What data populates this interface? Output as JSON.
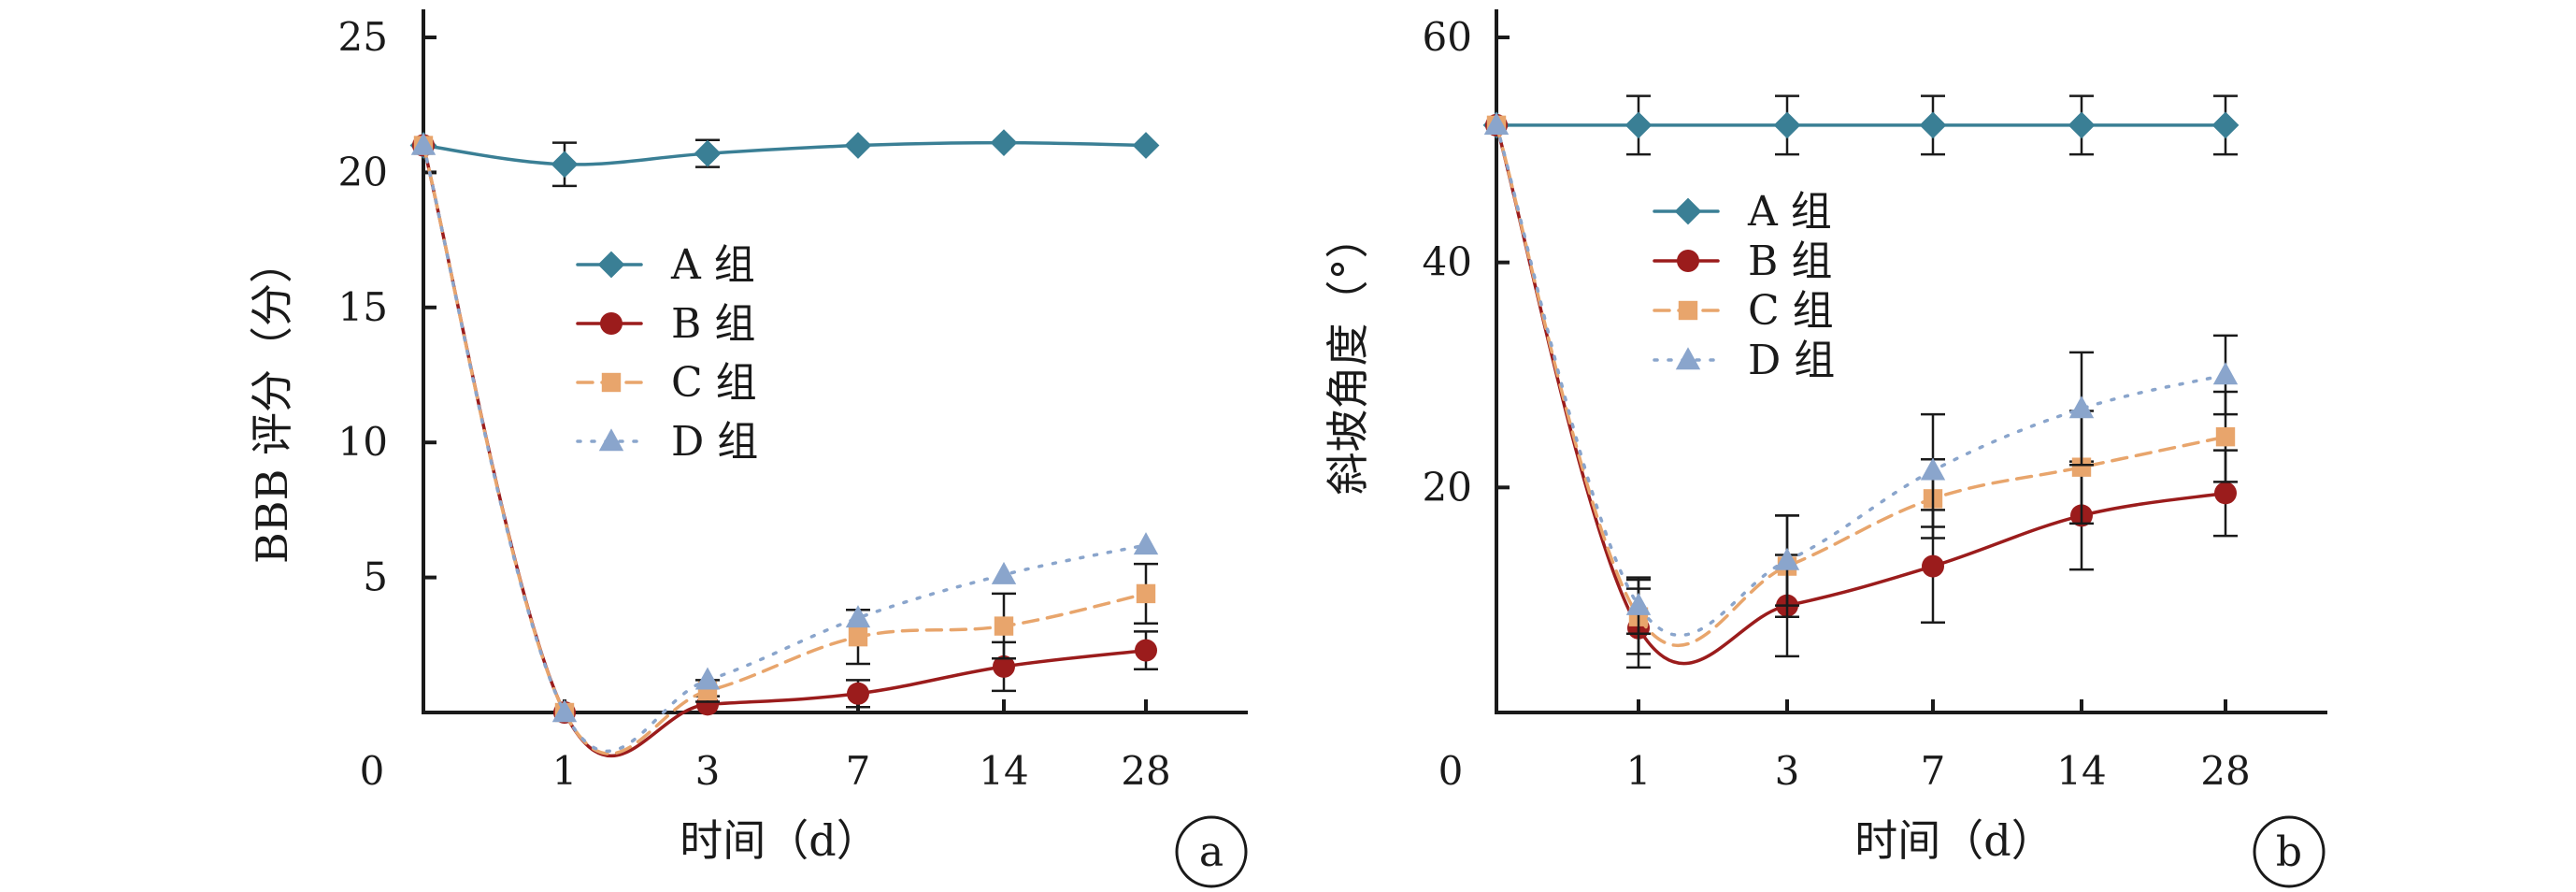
{
  "chart_data": [
    {
      "type": "line",
      "panel_label": "a",
      "categories": [
        "0",
        "1",
        "3",
        "7",
        "14",
        "28"
      ],
      "xlabel": "时间（d）",
      "ylabel": "BBB 评分（分）",
      "ylim": [
        0,
        25
      ],
      "y_ticks": [
        "5",
        "10",
        "15",
        "20",
        "25"
      ],
      "zero_label": "0",
      "legend_position": "center-left",
      "series": [
        {
          "name": "A 组",
          "color": "#3a7f95",
          "marker": "diamond",
          "line": "solid",
          "values": [
            21.0,
            20.3,
            20.7,
            21.0,
            21.1,
            21.0
          ],
          "errors": [
            0,
            0.8,
            0.5,
            0,
            0,
            0
          ]
        },
        {
          "name": "B 组",
          "color": "#9b1c1c",
          "marker": "circle",
          "line": "solid",
          "values": [
            21.0,
            0.0,
            0.3,
            0.7,
            1.7,
            2.3
          ],
          "errors": [
            0,
            0,
            0.3,
            0.5,
            0.9,
            0.7
          ]
        },
        {
          "name": "C 组",
          "color": "#e8a56c",
          "marker": "square",
          "line": "dashed",
          "values": [
            21.0,
            0.0,
            0.8,
            2.8,
            3.2,
            4.4
          ],
          "errors": [
            0,
            0,
            0.4,
            1.0,
            1.2,
            1.1
          ]
        },
        {
          "name": "D 组",
          "color": "#8aa5cc",
          "marker": "triangle",
          "line": "dotted",
          "values": [
            21.0,
            0.0,
            1.2,
            3.5,
            5.1,
            6.2
          ],
          "errors": [
            0,
            0,
            0,
            0,
            0,
            0
          ]
        }
      ]
    },
    {
      "type": "line",
      "panel_label": "b",
      "categories": [
        "0",
        "1",
        "3",
        "7",
        "14",
        "28"
      ],
      "xlabel": "时间（d）",
      "ylabel": "斜坡角度（°）",
      "ylim": [
        0,
        60
      ],
      "y_ticks": [
        "20",
        "40",
        "60"
      ],
      "zero_label": "0",
      "legend_position": "top-left",
      "series": [
        {
          "name": "A 组",
          "color": "#3a7f95",
          "marker": "diamond",
          "line": "solid",
          "values": [
            52.2,
            52.2,
            52.2,
            52.2,
            52.2,
            52.2
          ],
          "errors": [
            0,
            2.6,
            2.6,
            2.6,
            2.6,
            2.6
          ]
        },
        {
          "name": "B 组",
          "color": "#9b1c1c",
          "marker": "circle",
          "line": "solid",
          "values": [
            52.2,
            7.5,
            9.5,
            13.0,
            17.5,
            19.5
          ],
          "errors": [
            0,
            3.5,
            4.5,
            5.0,
            4.8,
            3.8
          ]
        },
        {
          "name": "C 组",
          "color": "#e8a56c",
          "marker": "square",
          "line": "dashed",
          "values": [
            52.2,
            8.5,
            13.0,
            19.0,
            21.8,
            24.5
          ],
          "errors": [
            0,
            3.3,
            4.5,
            3.5,
            5.0,
            4.0
          ]
        },
        {
          "name": "D 组",
          "color": "#8aa5cc",
          "marker": "triangle",
          "line": "dotted",
          "values": [
            52.2,
            9.5,
            13.5,
            21.5,
            27.0,
            30.0
          ],
          "errors": [
            0,
            2.5,
            4.0,
            5.0,
            5.0,
            3.5
          ]
        }
      ]
    }
  ]
}
